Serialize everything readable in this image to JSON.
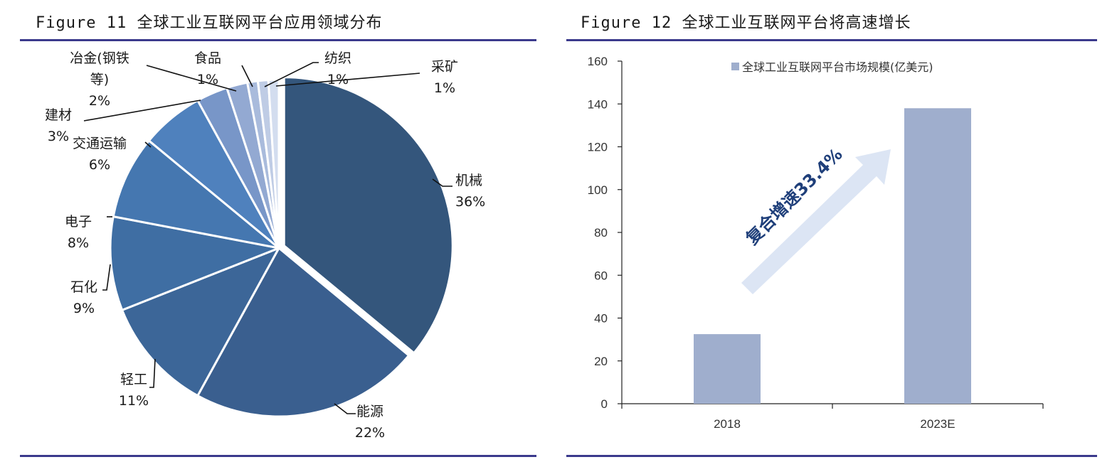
{
  "figures": [
    {
      "title": "Figure 11 全球工业互联网平台应用领域分布"
    },
    {
      "title": "Figure 12 全球工业互联网平台将高速增长"
    }
  ],
  "chart_data": [
    {
      "type": "pie",
      "title": "Figure 11 全球工业互联网平台应用领域分布",
      "slices": [
        {
          "name": "机械",
          "value": 36,
          "label": "36%",
          "color": "#34567c"
        },
        {
          "name": "能源",
          "value": 22,
          "label": "22%",
          "color": "#3a5f8f"
        },
        {
          "name": "轻工",
          "value": 11,
          "label": "11%",
          "color": "#3c6698"
        },
        {
          "name": "石化",
          "value": 9,
          "label": "9%",
          "color": "#3f6ea3"
        },
        {
          "name": "电子",
          "value": 8,
          "label": "8%",
          "color": "#4577b0"
        },
        {
          "name": "交通运输",
          "value": 6,
          "label": "6%",
          "color": "#4f81bd"
        },
        {
          "name": "建材",
          "value": 3,
          "label": "3%",
          "color": "#7896c8"
        },
        {
          "name": "冶金(钢铁等)",
          "value": 2,
          "label": "2%",
          "color": "#93a9d2"
        },
        {
          "name": "食品",
          "value": 1,
          "label": "1%",
          "color": "#a9bbdc"
        },
        {
          "name": "纺织",
          "value": 1,
          "label": "1%",
          "color": "#bfcce5"
        },
        {
          "name": "采矿",
          "value": 1,
          "label": "1%",
          "color": "#d3ddef"
        }
      ],
      "label_lines": {
        "机械": [
          "机械",
          "36%"
        ],
        "能源": [
          "能源",
          "22%"
        ],
        "轻工": [
          "轻工",
          "11%"
        ],
        "石化": [
          "石化",
          "9%"
        ],
        "电子": [
          "电子",
          "8%"
        ],
        "交通运输": [
          "交通运输",
          "6%"
        ],
        "建材": [
          "建材",
          "3%"
        ],
        "冶金(钢铁等)": [
          "冶金(钢铁",
          "等)",
          "2%"
        ],
        "食品": [
          "食品",
          "1%"
        ],
        "纺织": [
          "纺织",
          "1%"
        ],
        "采矿": [
          "采矿",
          "1%"
        ]
      }
    },
    {
      "type": "bar",
      "title": "Figure 12 全球工业互联网平台将高速增长",
      "categories": [
        "2018",
        "2023E"
      ],
      "series": [
        {
          "name": "全球工业互联网平台市场规模(亿美元)",
          "values": [
            32.5,
            138
          ],
          "color": "#9faecd"
        }
      ],
      "ylim": [
        0,
        160
      ],
      "yticks": [
        0,
        20,
        40,
        60,
        80,
        100,
        120,
        140,
        160
      ],
      "legend": "top",
      "annotation": "复合增速33.4%",
      "annotation_color": "#1f3f7a",
      "arrow_color": "#dce5f4"
    }
  ],
  "accent_color": "#3b3a8c"
}
